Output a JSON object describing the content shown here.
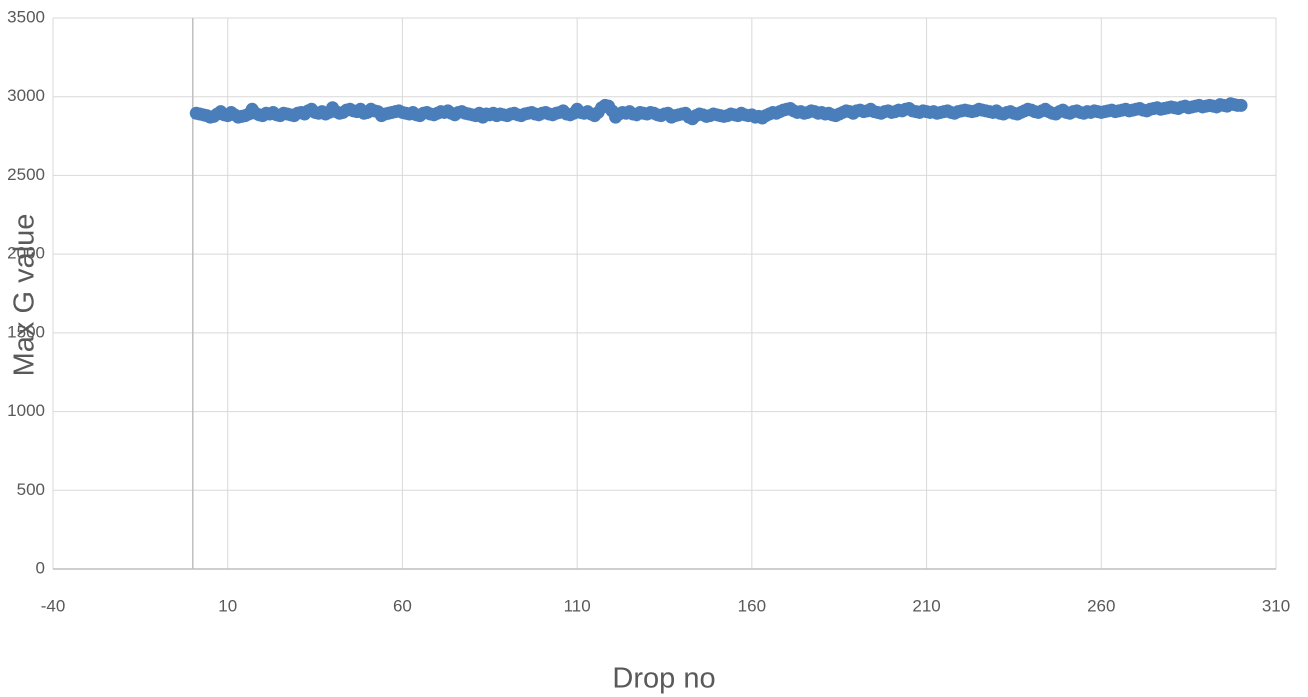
{
  "chart_data": {
    "type": "scatter",
    "xlabel": "Drop no",
    "ylabel": "Max G value",
    "xlim": [
      -40,
      310
    ],
    "xticks": [
      -40,
      10,
      60,
      110,
      160,
      210,
      260,
      310
    ],
    "ylim": [
      0,
      3500
    ],
    "yticks": [
      0,
      500,
      1000,
      1500,
      2000,
      2500,
      3000,
      3500
    ],
    "grid": true,
    "series": [
      {
        "color": "#4a7ebb",
        "x": [
          1,
          2,
          3,
          4,
          5,
          6,
          7,
          8,
          9,
          10,
          11,
          12,
          13,
          14,
          15,
          16,
          17,
          18,
          19,
          20,
          21,
          22,
          23,
          24,
          25,
          26,
          27,
          28,
          29,
          30,
          31,
          32,
          33,
          34,
          35,
          36,
          37,
          38,
          39,
          40,
          41,
          42,
          43,
          44,
          45,
          46,
          47,
          48,
          49,
          50,
          51,
          52,
          53,
          54,
          55,
          56,
          57,
          58,
          59,
          60,
          61,
          62,
          63,
          64,
          65,
          66,
          67,
          68,
          69,
          70,
          71,
          72,
          73,
          74,
          75,
          76,
          77,
          78,
          79,
          80,
          81,
          82,
          83,
          84,
          85,
          86,
          87,
          88,
          89,
          90,
          91,
          92,
          93,
          94,
          95,
          96,
          97,
          98,
          99,
          100,
          101,
          102,
          103,
          104,
          105,
          106,
          107,
          108,
          109,
          110,
          111,
          112,
          113,
          114,
          115,
          116,
          117,
          118,
          119,
          120,
          121,
          122,
          123,
          124,
          125,
          126,
          127,
          128,
          129,
          130,
          131,
          132,
          133,
          134,
          135,
          136,
          137,
          138,
          139,
          140,
          141,
          142,
          143,
          144,
          145,
          146,
          147,
          148,
          149,
          150,
          151,
          152,
          153,
          154,
          155,
          156,
          157,
          158,
          159,
          160,
          161,
          162,
          163,
          164,
          165,
          166,
          167,
          168,
          169,
          170,
          171,
          172,
          173,
          174,
          175,
          176,
          177,
          178,
          179,
          180,
          181,
          182,
          183,
          184,
          185,
          186,
          187,
          188,
          189,
          190,
          191,
          192,
          193,
          194,
          195,
          196,
          197,
          198,
          199,
          200,
          201,
          202,
          203,
          204,
          205,
          206,
          207,
          208,
          209,
          210,
          211,
          212,
          213,
          214,
          215,
          216,
          217,
          218,
          219,
          220,
          221,
          222,
          223,
          224,
          225,
          226,
          227,
          228,
          229,
          230,
          231,
          232,
          233,
          234,
          235,
          236,
          237,
          238,
          239,
          240,
          241,
          242,
          243,
          244,
          245,
          246,
          247,
          248,
          249,
          250,
          251,
          252,
          253,
          254,
          255,
          256,
          257,
          258,
          259,
          260,
          261,
          262,
          263,
          264,
          265,
          266,
          267,
          268,
          269,
          270,
          271,
          272,
          273,
          274,
          275,
          276,
          277,
          278,
          279,
          280,
          281,
          282,
          283,
          284,
          285,
          286,
          287,
          288,
          289,
          290,
          291,
          292,
          293,
          294,
          295,
          296,
          297,
          298,
          299,
          300
        ],
        "values": [
          2895,
          2890,
          2885,
          2880,
          2870,
          2875,
          2890,
          2905,
          2885,
          2880,
          2900,
          2885,
          2870,
          2875,
          2880,
          2890,
          2920,
          2895,
          2885,
          2880,
          2895,
          2890,
          2900,
          2885,
          2880,
          2895,
          2890,
          2885,
          2880,
          2895,
          2900,
          2890,
          2910,
          2920,
          2900,
          2895,
          2905,
          2890,
          2900,
          2930,
          2905,
          2895,
          2900,
          2915,
          2920,
          2910,
          2905,
          2920,
          2895,
          2900,
          2920,
          2910,
          2905,
          2880,
          2890,
          2895,
          2900,
          2905,
          2910,
          2900,
          2895,
          2890,
          2900,
          2885,
          2880,
          2895,
          2900,
          2890,
          2885,
          2895,
          2905,
          2900,
          2910,
          2895,
          2885,
          2900,
          2905,
          2895,
          2890,
          2885,
          2880,
          2895,
          2870,
          2890,
          2885,
          2895,
          2880,
          2890,
          2885,
          2880,
          2890,
          2895,
          2885,
          2880,
          2890,
          2895,
          2900,
          2890,
          2885,
          2895,
          2900,
          2890,
          2885,
          2895,
          2900,
          2910,
          2890,
          2885,
          2895,
          2920,
          2900,
          2895,
          2905,
          2890,
          2880,
          2900,
          2930,
          2945,
          2940,
          2910,
          2870,
          2890,
          2900,
          2895,
          2905,
          2890,
          2885,
          2900,
          2895,
          2890,
          2900,
          2895,
          2885,
          2880,
          2890,
          2895,
          2870,
          2880,
          2885,
          2890,
          2895,
          2870,
          2860,
          2880,
          2890,
          2885,
          2875,
          2880,
          2890,
          2885,
          2880,
          2875,
          2880,
          2890,
          2885,
          2880,
          2895,
          2885,
          2880,
          2885,
          2870,
          2875,
          2865,
          2880,
          2890,
          2900,
          2895,
          2905,
          2915,
          2920,
          2925,
          2910,
          2900,
          2905,
          2895,
          2900,
          2910,
          2905,
          2895,
          2900,
          2890,
          2895,
          2885,
          2880,
          2890,
          2900,
          2910,
          2905,
          2895,
          2910,
          2915,
          2905,
          2910,
          2920,
          2905,
          2900,
          2895,
          2905,
          2910,
          2900,
          2905,
          2915,
          2910,
          2920,
          2925,
          2910,
          2905,
          2900,
          2910,
          2905,
          2900,
          2905,
          2895,
          2900,
          2905,
          2910,
          2900,
          2895,
          2905,
          2910,
          2915,
          2910,
          2905,
          2910,
          2920,
          2915,
          2910,
          2905,
          2900,
          2910,
          2895,
          2890,
          2900,
          2905,
          2895,
          2890,
          2900,
          2910,
          2920,
          2915,
          2905,
          2900,
          2910,
          2920,
          2905,
          2895,
          2890,
          2905,
          2915,
          2900,
          2895,
          2905,
          2910,
          2900,
          2895,
          2905,
          2900,
          2910,
          2905,
          2900,
          2905,
          2910,
          2915,
          2905,
          2910,
          2915,
          2920,
          2910,
          2915,
          2920,
          2925,
          2915,
          2910,
          2920,
          2925,
          2930,
          2920,
          2925,
          2930,
          2935,
          2930,
          2925,
          2935,
          2940,
          2930,
          2935,
          2940,
          2945,
          2935,
          2940,
          2945,
          2940,
          2935,
          2950,
          2945,
          2940,
          2955,
          2950,
          2945,
          2945
        ]
      }
    ]
  }
}
